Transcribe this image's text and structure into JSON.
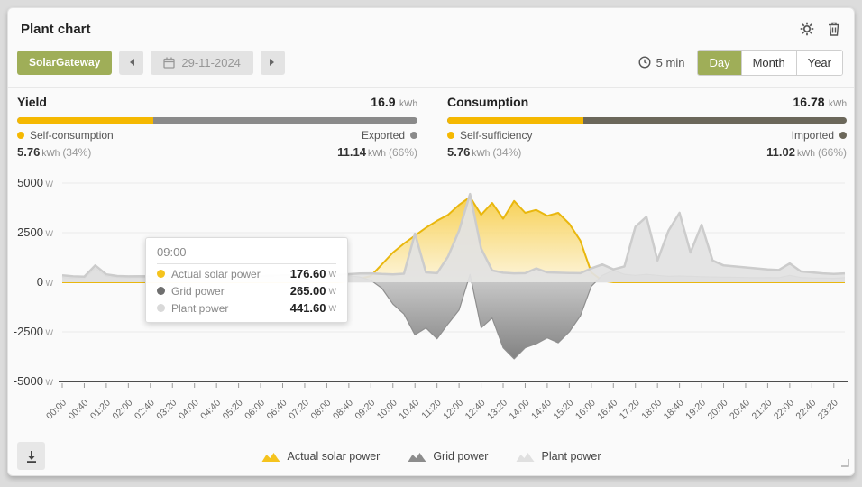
{
  "header": {
    "title": "Plant chart"
  },
  "toolbar": {
    "gateway_label": "SolarGateway",
    "date": "29-11-2024",
    "interval": "5 min",
    "views": [
      {
        "label": "Day",
        "active": true
      },
      {
        "label": "Month",
        "active": false
      },
      {
        "label": "Year",
        "active": false
      }
    ]
  },
  "stats": {
    "yield": {
      "title": "Yield",
      "total": "16.9",
      "unit": "kWh",
      "left_label": "Self-consumption",
      "left_value": "5.76",
      "left_unit": "kWh",
      "left_pct": "(34%)",
      "left_pct_num": 34,
      "left_color": "#f5b800",
      "right_label": "Exported",
      "right_value": "11.14",
      "right_unit": "kWh",
      "right_pct": "(66%)",
      "right_color": "#8a8a8a"
    },
    "consumption": {
      "title": "Consumption",
      "total": "16.78",
      "unit": "kWh",
      "left_label": "Self-sufficiency",
      "left_value": "5.76",
      "left_unit": "kWh",
      "left_pct": "(34%)",
      "left_pct_num": 34,
      "left_color": "#f5b800",
      "right_label": "Imported",
      "right_value": "11.02",
      "right_unit": "kWh",
      "right_pct": "(66%)",
      "right_color": "#6b675a"
    }
  },
  "tooltip": {
    "time": "09:00",
    "rows": [
      {
        "label": "Actual solar power",
        "value": "176.60",
        "unit": "W",
        "color": "#f5c31d"
      },
      {
        "label": "Grid power",
        "value": "265.00",
        "unit": "W",
        "color": "#6f6f6f"
      },
      {
        "label": "Plant power",
        "value": "441.60",
        "unit": "W",
        "color": "#d9d9d9"
      }
    ]
  },
  "legend": [
    {
      "label": "Actual solar power",
      "color": "#f5c31d"
    },
    {
      "label": "Grid power",
      "color": "#8c8c8c"
    },
    {
      "label": "Plant power",
      "color": "#e0e0e0"
    }
  ],
  "colors": {
    "accent": "#9fae58",
    "yellow": "#f5b800"
  },
  "chart_data": {
    "type": "area",
    "ylabel_unit": "W",
    "ylim": [
      -5000,
      5000
    ],
    "y_ticks": [
      5000,
      2500,
      0,
      -2500,
      -5000
    ],
    "x_step_minutes": 20,
    "x_tick_labels": [
      "00:00",
      "00:40",
      "01:20",
      "02:00",
      "02:40",
      "03:20",
      "04:00",
      "04:40",
      "05:20",
      "06:00",
      "06:40",
      "07:20",
      "08:00",
      "08:40",
      "09:20",
      "10:00",
      "10:40",
      "11:20",
      "12:00",
      "12:40",
      "13:20",
      "14:00",
      "14:40",
      "15:20",
      "16:00",
      "16:40",
      "17:20",
      "18:00",
      "18:40",
      "19:20",
      "20:00",
      "20:40",
      "21:20",
      "22:00",
      "22:40",
      "23:20"
    ],
    "series": [
      {
        "name": "Actual solar power",
        "color": "#e9b70e",
        "values": [
          0,
          0,
          0,
          0,
          0,
          0,
          0,
          0,
          0,
          0,
          0,
          0,
          0,
          0,
          0,
          0,
          0,
          0,
          0,
          0,
          0,
          0,
          0,
          0,
          0,
          0,
          60,
          176.6,
          320,
          900,
          1500,
          1950,
          2350,
          2750,
          3100,
          3400,
          3900,
          4300,
          3400,
          4000,
          3200,
          4100,
          3500,
          3650,
          3350,
          3500,
          2950,
          2100,
          500,
          80,
          0,
          0,
          0,
          0,
          0,
          0,
          0,
          0,
          0,
          0,
          0,
          0,
          0,
          0,
          0,
          0,
          0,
          0,
          0,
          0,
          0,
          0
        ]
      },
      {
        "name": "Grid power",
        "color": "#8f8f8f",
        "values": [
          250,
          200,
          190,
          700,
          300,
          240,
          220,
          230,
          220,
          210,
          220,
          230,
          220,
          210,
          220,
          230,
          220,
          210,
          230,
          250,
          280,
          270,
          260,
          270,
          280,
          290,
          330,
          265,
          100,
          -300,
          -1100,
          -1600,
          -2650,
          -2300,
          -2850,
          -2100,
          -1400,
          400,
          -2300,
          -1800,
          -3300,
          -3860,
          -3300,
          -3100,
          -2800,
          -3050,
          -2500,
          -1700,
          -200,
          350,
          600,
          400,
          350,
          400,
          350,
          300,
          320,
          300,
          280,
          270,
          260,
          250,
          240,
          230,
          240,
          230,
          350,
          240,
          220,
          210,
          200,
          230
        ]
      },
      {
        "name": "Plant power",
        "color": "#cccccc",
        "values": [
          350,
          300,
          280,
          850,
          400,
          320,
          300,
          310,
          300,
          290,
          300,
          310,
          300,
          290,
          300,
          310,
          300,
          290,
          310,
          330,
          360,
          350,
          340,
          350,
          360,
          370,
          410,
          441.6,
          450,
          420,
          400,
          430,
          2450,
          500,
          460,
          1300,
          2600,
          4450,
          1700,
          600,
          480,
          450,
          460,
          700,
          500,
          480,
          470,
          460,
          700,
          900,
          650,
          800,
          2800,
          3300,
          1100,
          2600,
          3500,
          1500,
          2900,
          1100,
          850,
          800,
          750,
          700,
          650,
          620,
          950,
          550,
          500,
          450,
          420,
          450
        ]
      }
    ]
  }
}
